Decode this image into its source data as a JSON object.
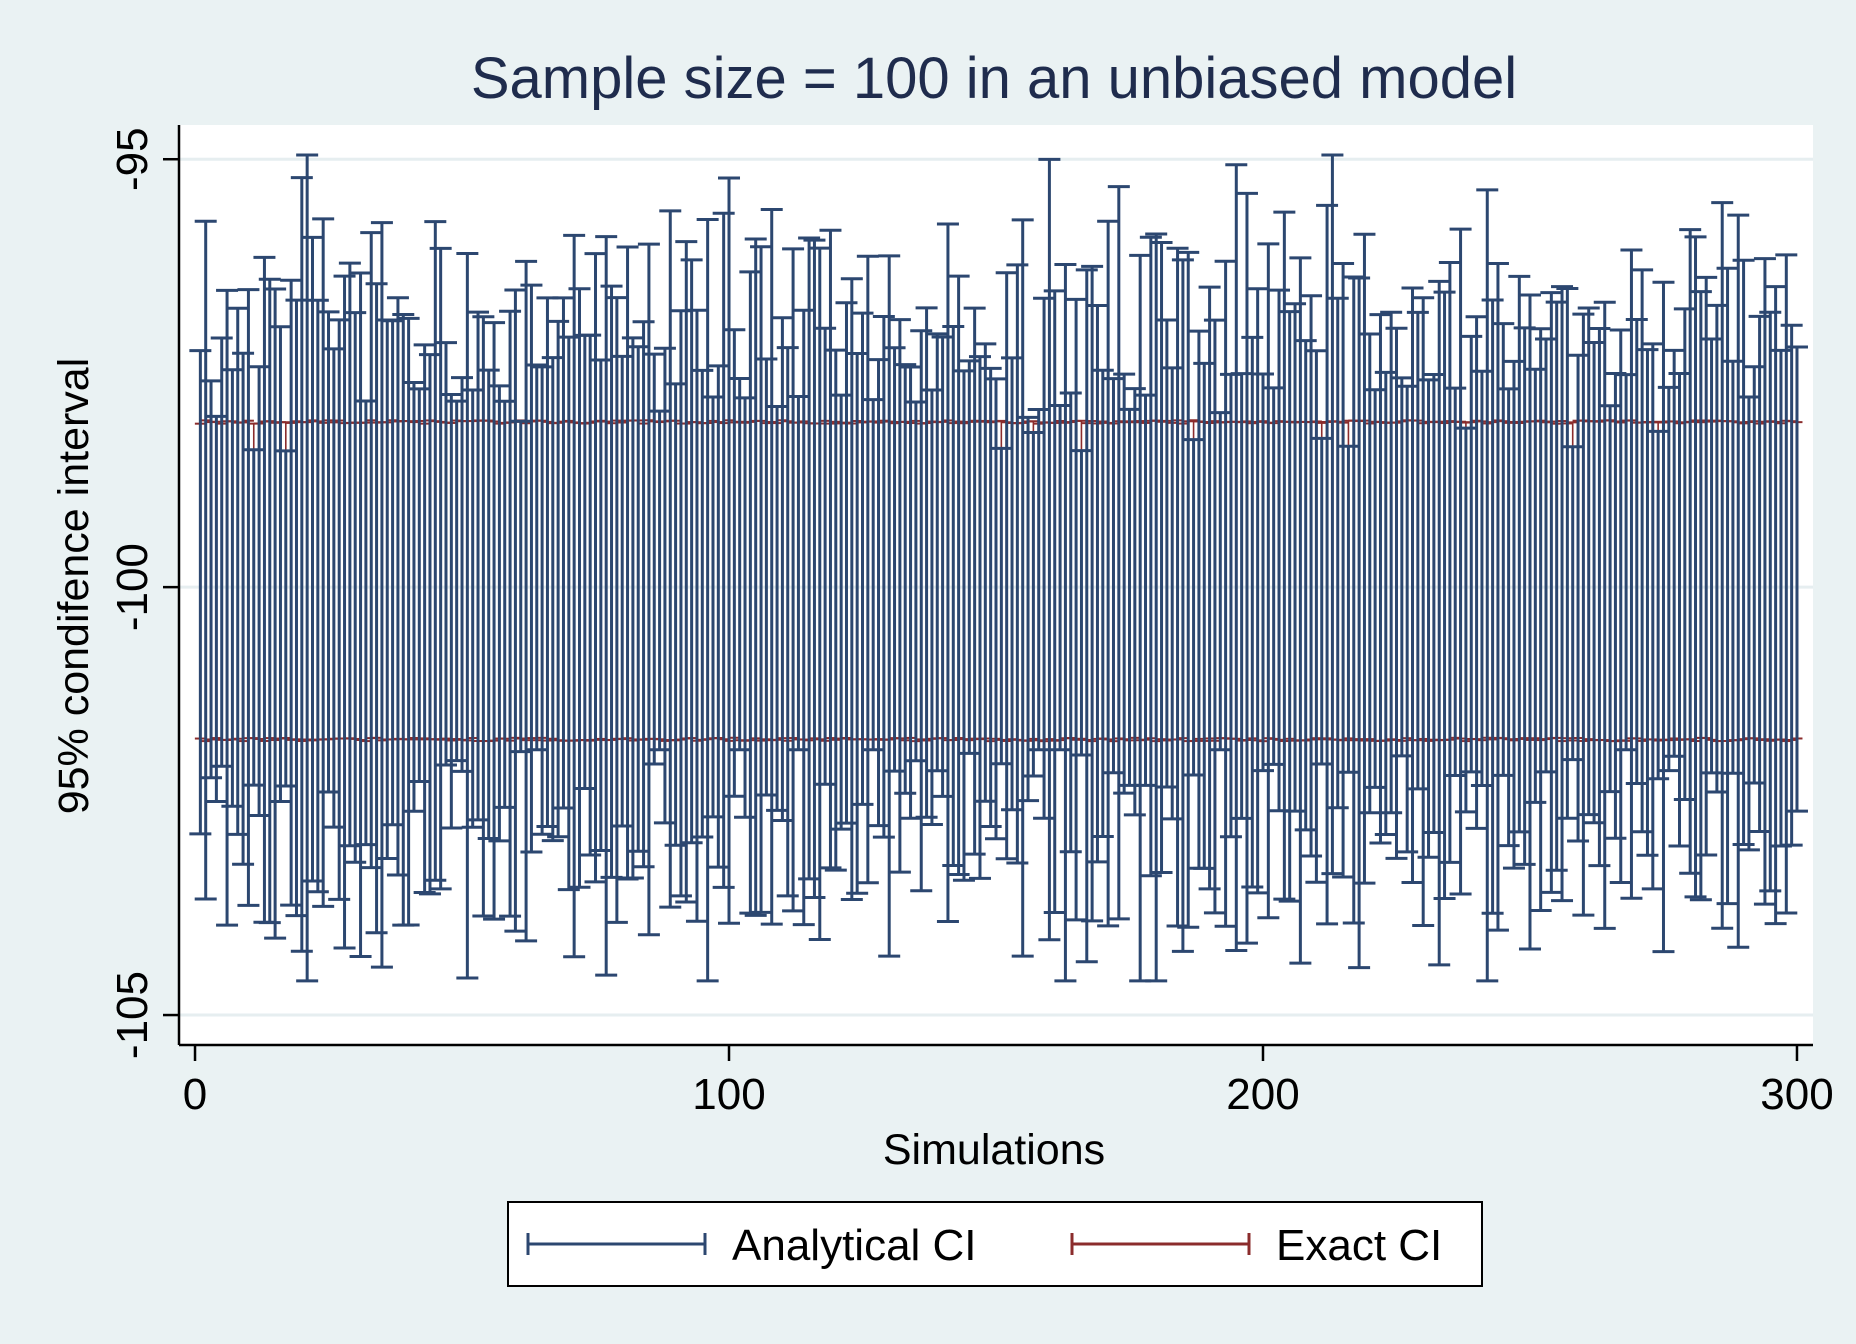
{
  "chart_data": {
    "type": "errorbar",
    "title": "Sample size = 100 in an unbiased model",
    "xlabel": "Simulations",
    "ylabel": "95% condifence interval",
    "xlim": [
      -3,
      303
    ],
    "ylim": [
      -105.35,
      -94.6
    ],
    "x_ticks": [
      0,
      100,
      200,
      300
    ],
    "x_tick_labels": [
      "0",
      "100",
      "200",
      "300"
    ],
    "y_ticks": [
      -95,
      -100,
      -105
    ],
    "y_tick_labels": [
      "-95",
      "-100",
      "-105"
    ],
    "grid": true,
    "legend_position": "bottom",
    "n_simulations": 300,
    "series": [
      {
        "name": "Analytical CI",
        "color": "#2c4770",
        "summary": "per-simulation 95% intervals; upper bounds mostly -96.0 to -98.3, lower bounds mostly -101.8 to -103.8",
        "extremes": {
          "max_upper": -94.95,
          "min_lower": -104.6
        },
        "upper_range": [
          -97.9,
          -95.5
        ],
        "lower_range": [
          -104.5,
          -101.8
        ]
      },
      {
        "name": "Exact CI",
        "color": "#8b2c2c",
        "summary": "per-simulation intervals forming a near-constant band",
        "upper_range": [
          -98.1,
          -98.05
        ],
        "lower_range": [
          -101.8,
          -101.75
        ]
      }
    ]
  },
  "colors": {
    "background": "#eaf2f3",
    "plot_background": "#ffffff",
    "grid": "#e6eef0",
    "analytical": "#2c4770",
    "exact": "#8b2c2c",
    "title": "#1f2c4d"
  }
}
